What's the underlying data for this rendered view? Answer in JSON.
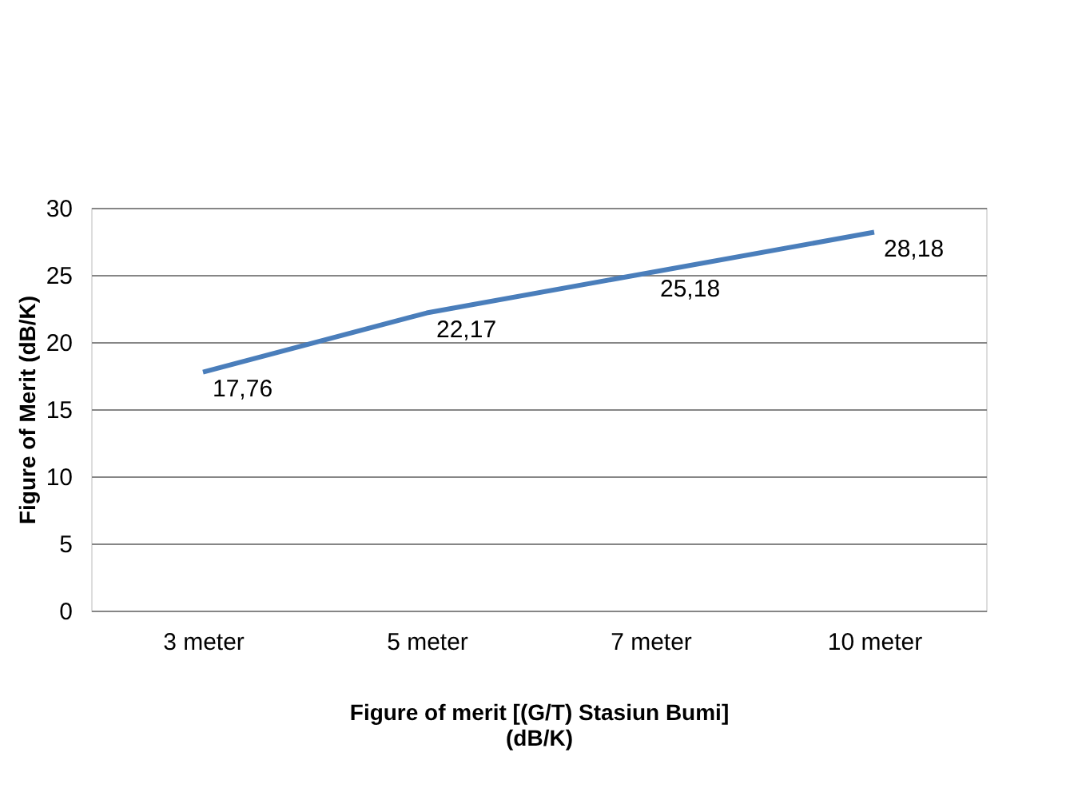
{
  "chart_data": {
    "type": "line",
    "categories": [
      "3 meter",
      "5 meter",
      "7 meter",
      "10 meter"
    ],
    "series": [
      {
        "color": "#4a7ebb",
        "values": [
          17.76,
          22.17,
          25.18,
          28.18
        ],
        "value_labels": [
          "17,76",
          "22,17",
          "25,18",
          "28,18"
        ]
      }
    ],
    "ylabel": "Figure of Merit (dB/K)",
    "xlabel": "Figure of merit  [(G/T) Stasiun Bumi]\n(dB/K)",
    "ylim": [
      0,
      30
    ],
    "yticks": [
      0,
      5,
      10,
      15,
      20,
      25,
      30
    ],
    "grid": "y",
    "marker": "none",
    "line_style": "solid"
  }
}
